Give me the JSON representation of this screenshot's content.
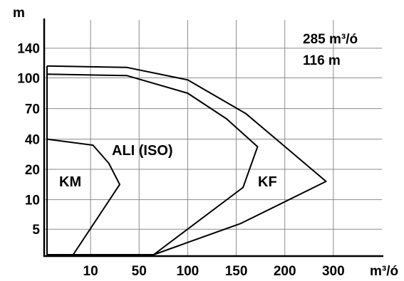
{
  "chart_data": {
    "type": "area",
    "y_axis_label": "m",
    "x_axis_label": "m³/ó",
    "y_ticks": [
      "5",
      "10",
      "20",
      "40",
      "70",
      "100",
      "140"
    ],
    "x_ticks": [
      "10",
      "50",
      "100",
      "150",
      "200",
      "300"
    ],
    "grid": true,
    "annotation": {
      "flow": "285 m³/ó",
      "head": "116 m"
    },
    "regions": [
      {
        "name": "KM",
        "outline": [
          {
            "x": 0,
            "y": 40
          },
          {
            "x": 0,
            "y": 0
          },
          {
            "x": 6,
            "y": 0
          },
          {
            "x": 34,
            "y": 15
          },
          {
            "x": 25,
            "y": 24
          },
          {
            "x": 12,
            "y": 36
          },
          {
            "x": 0,
            "y": 40
          }
        ]
      },
      {
        "name": "ALI (ISO)",
        "outline": [
          {
            "x": 0,
            "y": 105
          },
          {
            "x": 0,
            "y": 0
          },
          {
            "x": 65,
            "y": 0
          },
          {
            "x": 157,
            "y": 14
          },
          {
            "x": 172,
            "y": 35
          },
          {
            "x": 140,
            "y": 60
          },
          {
            "x": 100,
            "y": 85
          },
          {
            "x": 40,
            "y": 103
          },
          {
            "x": 0,
            "y": 105
          }
        ]
      },
      {
        "name": "KF",
        "outline": [
          {
            "x": 0,
            "y": 116
          },
          {
            "x": 0,
            "y": 0
          },
          {
            "x": 65,
            "y": 0
          },
          {
            "x": 155,
            "y": 6
          },
          {
            "x": 285,
            "y": 16
          },
          {
            "x": 160,
            "y": 65
          },
          {
            "x": 100,
            "y": 98
          },
          {
            "x": 40,
            "y": 114
          },
          {
            "x": 0,
            "y": 116
          }
        ]
      }
    ]
  }
}
